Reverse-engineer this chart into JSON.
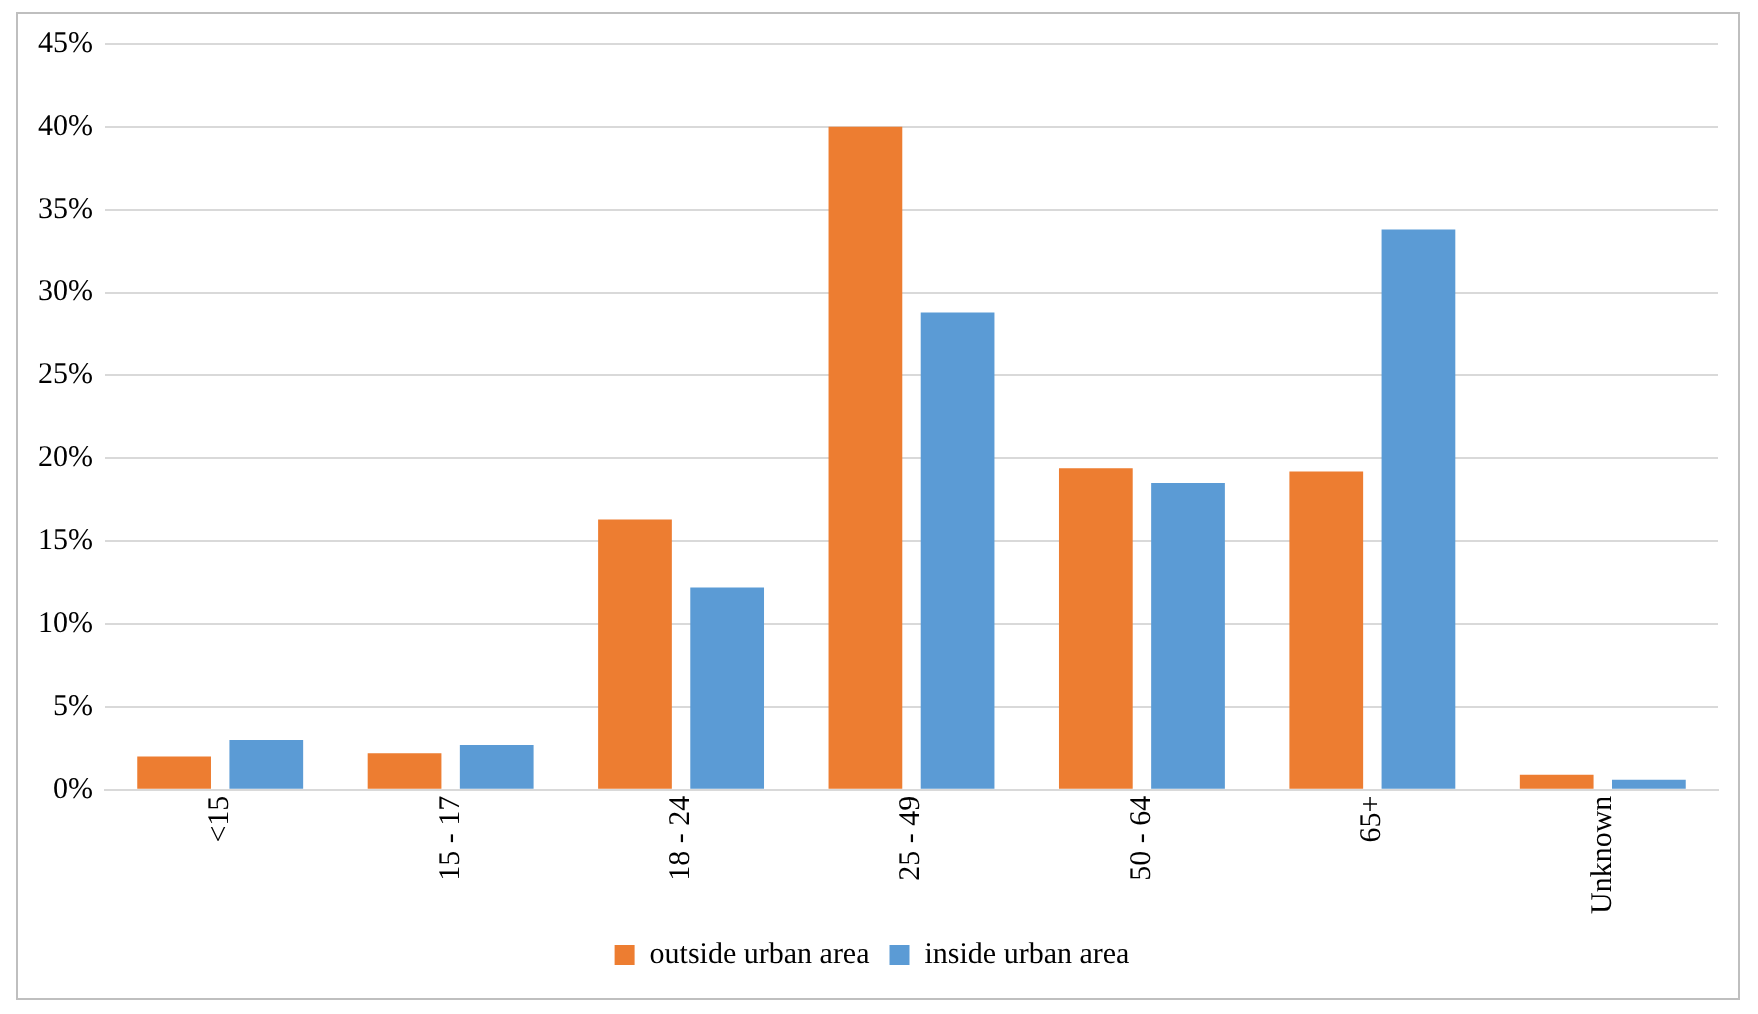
{
  "chart_data": {
    "type": "bar",
    "categories": [
      "<15",
      "15 - 17",
      "18 - 24",
      "25 - 49",
      "50 - 64",
      "65+",
      "Unknown"
    ],
    "series": [
      {
        "name": "outside urban area",
        "color": "#ed7d31",
        "values": [
          2.0,
          2.2,
          16.3,
          40.0,
          19.4,
          19.2,
          0.9
        ]
      },
      {
        "name": "inside urban area",
        "color": "#5b9bd5",
        "values": [
          3.0,
          2.7,
          12.2,
          28.8,
          18.5,
          33.8,
          0.6
        ]
      }
    ],
    "ylim": [
      0,
      45
    ],
    "yticks": [
      {
        "value": 0,
        "label": "0%"
      },
      {
        "value": 5,
        "label": "5%"
      },
      {
        "value": 10,
        "label": "10%"
      },
      {
        "value": 15,
        "label": "15%"
      },
      {
        "value": 20,
        "label": "20%"
      },
      {
        "value": 25,
        "label": "25%"
      },
      {
        "value": 30,
        "label": "30%"
      },
      {
        "value": 35,
        "label": "35%"
      },
      {
        "value": 40,
        "label": "40%"
      },
      {
        "value": 45,
        "label": "45%"
      }
    ],
    "grid": "y",
    "legend": "bottom"
  }
}
